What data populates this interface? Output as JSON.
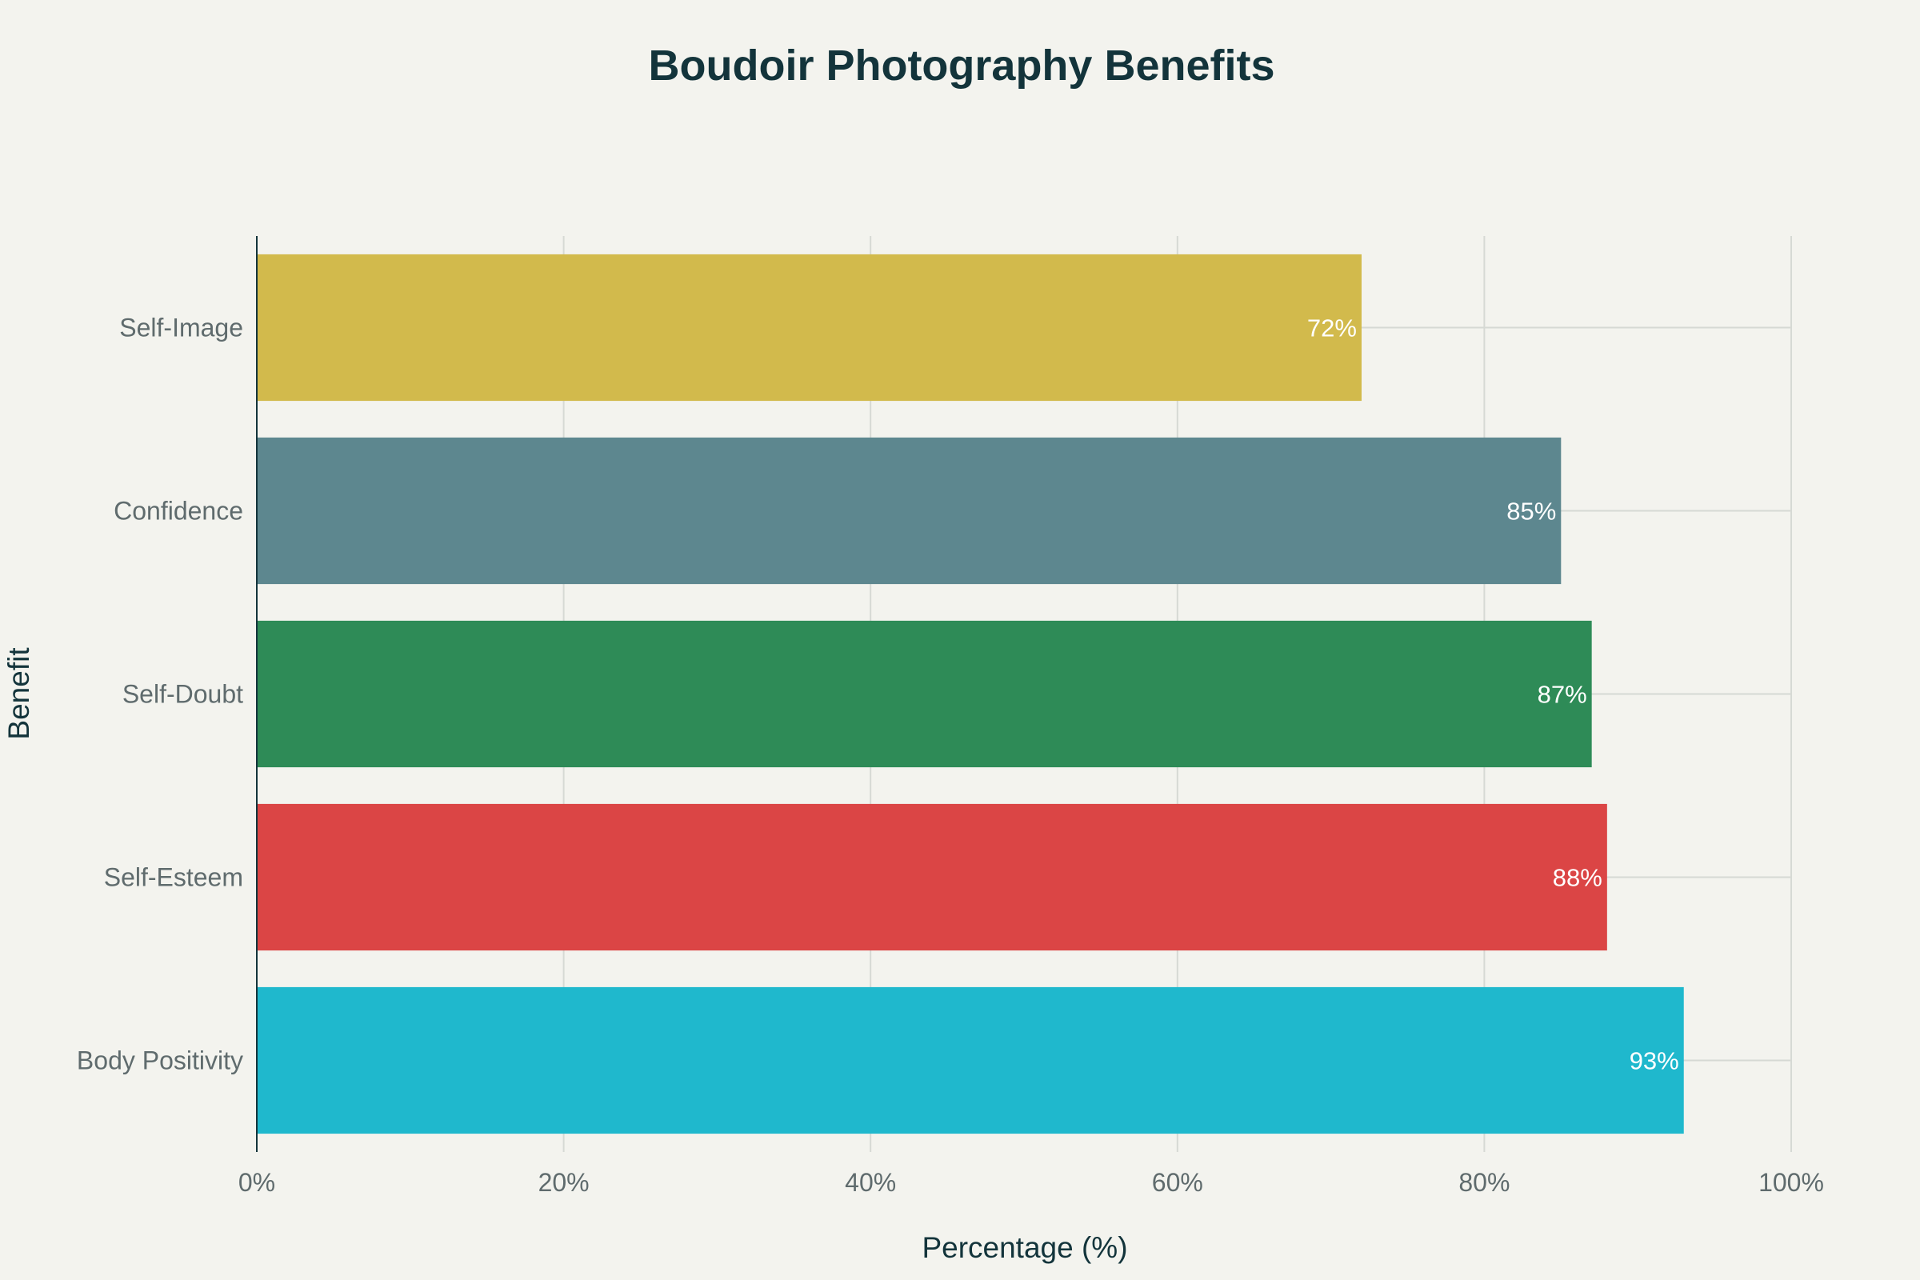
{
  "chart_data": {
    "type": "bar",
    "orientation": "horizontal",
    "title": "Boudoir Photography Benefits",
    "xlabel": "Percentage (%)",
    "ylabel": "Benefit",
    "xlim": [
      0,
      100
    ],
    "x_ticks": [
      "0%",
      "20%",
      "40%",
      "60%",
      "80%",
      "100%"
    ],
    "categories": [
      "Self-Image",
      "Confidence",
      "Self-Doubt",
      "Self-Esteem",
      "Body Positivity"
    ],
    "values": [
      72,
      85,
      87,
      88,
      93
    ],
    "data_labels": [
      "72%",
      "85%",
      "87%",
      "88%",
      "93%"
    ],
    "colors": [
      "#d2ba4c",
      "#5d878f",
      "#2e8b57",
      "#db4545",
      "#1fb8cd"
    ],
    "grid": true,
    "legend": "none"
  }
}
